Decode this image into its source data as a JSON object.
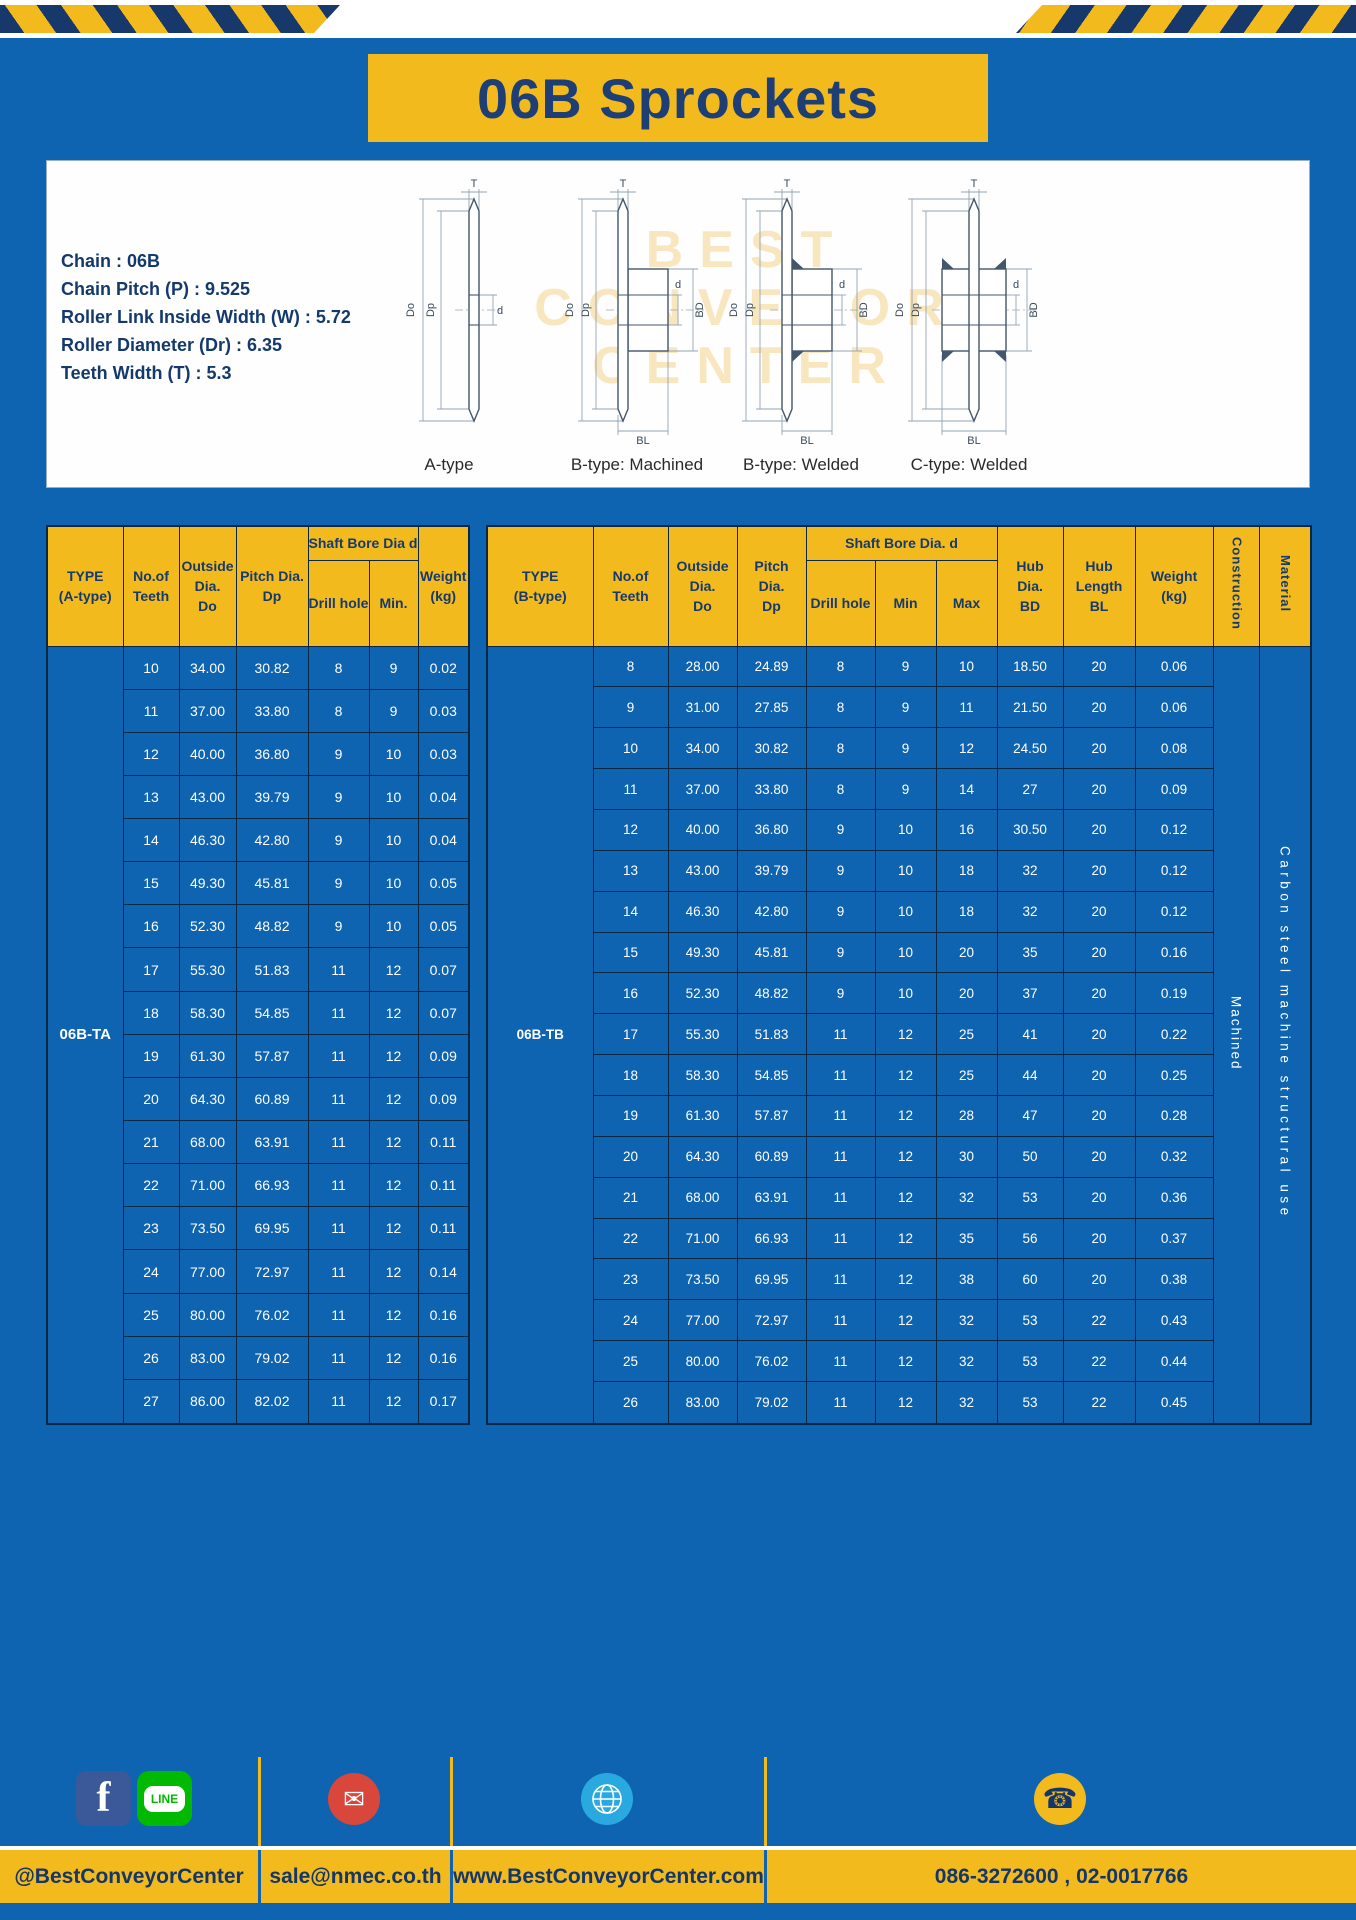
{
  "title": "06B Sprockets",
  "specs": {
    "lines": [
      "Chain : 06B",
      "Chain Pitch (P) : 9.525",
      "Roller Link Inside Width (W) : 5.72",
      "Roller Diameter (Dr) : 6.35",
      "Teeth Width (T) : 5.3"
    ]
  },
  "drawings": {
    "captions": [
      "A-type",
      "B-type: Machined",
      "B-type: Welded",
      "C-type: Welded"
    ],
    "labels": {
      "T": "T",
      "Do": "Do",
      "Dp": "Dp",
      "d": "d",
      "BD": "BD",
      "BL": "BL"
    },
    "watermark": [
      "BEST",
      "CONVEYOR",
      "CENTER"
    ]
  },
  "table_a": {
    "header": {
      "type": "TYPE\n(A-type)",
      "teeth": "No.of\nTeeth",
      "outside": "Outside\nDia.\nDo",
      "pitch": "Pitch Dia.\nDp",
      "shaft_bore": "Shaft Bore Dia d",
      "drill": "Drill hole",
      "min": "Min.",
      "weight": "Weight\n(kg)"
    },
    "type_value": "06B-TA",
    "rows": [
      [
        "10",
        "34.00",
        "30.82",
        "8",
        "9",
        "0.02"
      ],
      [
        "11",
        "37.00",
        "33.80",
        "8",
        "9",
        "0.03"
      ],
      [
        "12",
        "40.00",
        "36.80",
        "9",
        "10",
        "0.03"
      ],
      [
        "13",
        "43.00",
        "39.79",
        "9",
        "10",
        "0.04"
      ],
      [
        "14",
        "46.30",
        "42.80",
        "9",
        "10",
        "0.04"
      ],
      [
        "15",
        "49.30",
        "45.81",
        "9",
        "10",
        "0.05"
      ],
      [
        "16",
        "52.30",
        "48.82",
        "9",
        "10",
        "0.05"
      ],
      [
        "17",
        "55.30",
        "51.83",
        "11",
        "12",
        "0.07"
      ],
      [
        "18",
        "58.30",
        "54.85",
        "11",
        "12",
        "0.07"
      ],
      [
        "19",
        "61.30",
        "57.87",
        "11",
        "12",
        "0.09"
      ],
      [
        "20",
        "64.30",
        "60.89",
        "11",
        "12",
        "0.09"
      ],
      [
        "21",
        "68.00",
        "63.91",
        "11",
        "12",
        "0.11"
      ],
      [
        "22",
        "71.00",
        "66.93",
        "11",
        "12",
        "0.11"
      ],
      [
        "23",
        "73.50",
        "69.95",
        "11",
        "12",
        "0.11"
      ],
      [
        "24",
        "77.00",
        "72.97",
        "11",
        "12",
        "0.14"
      ],
      [
        "25",
        "80.00",
        "76.02",
        "11",
        "12",
        "0.16"
      ],
      [
        "26",
        "83.00",
        "79.02",
        "11",
        "12",
        "0.16"
      ],
      [
        "27",
        "86.00",
        "82.02",
        "11",
        "12",
        "0.17"
      ]
    ]
  },
  "table_b": {
    "header": {
      "type": "TYPE\n(B-type)",
      "teeth": "No.of\nTeeth",
      "outside": "Outside\nDia.\nDo",
      "pitch": "Pitch\nDia.\nDp",
      "shaft_bore": "Shaft Bore Dia. d",
      "drill": "Drill hole",
      "min": "Min",
      "max": "Max",
      "hub_dia": "Hub\nDia.\nBD",
      "hub_len": "Hub\nLength\nBL",
      "weight": "Weight\n(kg)",
      "construction": "Construction",
      "material": "Material"
    },
    "type_value": "06B-TB",
    "construction_value": "Machined",
    "material_value": "Carbon steel machine structural use",
    "rows": [
      [
        "8",
        "28.00",
        "24.89",
        "8",
        "9",
        "10",
        "18.50",
        "20",
        "0.06"
      ],
      [
        "9",
        "31.00",
        "27.85",
        "8",
        "9",
        "11",
        "21.50",
        "20",
        "0.06"
      ],
      [
        "10",
        "34.00",
        "30.82",
        "8",
        "9",
        "12",
        "24.50",
        "20",
        "0.08"
      ],
      [
        "11",
        "37.00",
        "33.80",
        "8",
        "9",
        "14",
        "27",
        "20",
        "0.09"
      ],
      [
        "12",
        "40.00",
        "36.80",
        "9",
        "10",
        "16",
        "30.50",
        "20",
        "0.12"
      ],
      [
        "13",
        "43.00",
        "39.79",
        "9",
        "10",
        "18",
        "32",
        "20",
        "0.12"
      ],
      [
        "14",
        "46.30",
        "42.80",
        "9",
        "10",
        "18",
        "32",
        "20",
        "0.12"
      ],
      [
        "15",
        "49.30",
        "45.81",
        "9",
        "10",
        "20",
        "35",
        "20",
        "0.16"
      ],
      [
        "16",
        "52.30",
        "48.82",
        "9",
        "10",
        "20",
        "37",
        "20",
        "0.19"
      ],
      [
        "17",
        "55.30",
        "51.83",
        "11",
        "12",
        "25",
        "41",
        "20",
        "0.22"
      ],
      [
        "18",
        "58.30",
        "54.85",
        "11",
        "12",
        "25",
        "44",
        "20",
        "0.25"
      ],
      [
        "19",
        "61.30",
        "57.87",
        "11",
        "12",
        "28",
        "47",
        "20",
        "0.28"
      ],
      [
        "20",
        "64.30",
        "60.89",
        "11",
        "12",
        "30",
        "50",
        "20",
        "0.32"
      ],
      [
        "21",
        "68.00",
        "63.91",
        "11",
        "12",
        "32",
        "53",
        "20",
        "0.36"
      ],
      [
        "22",
        "71.00",
        "66.93",
        "11",
        "12",
        "35",
        "56",
        "20",
        "0.37"
      ],
      [
        "23",
        "73.50",
        "69.95",
        "11",
        "12",
        "38",
        "60",
        "20",
        "0.38"
      ],
      [
        "24",
        "77.00",
        "72.97",
        "11",
        "12",
        "32",
        "53",
        "22",
        "0.43"
      ],
      [
        "25",
        "80.00",
        "76.02",
        "11",
        "12",
        "32",
        "53",
        "22",
        "0.44"
      ],
      [
        "26",
        "83.00",
        "79.02",
        "11",
        "12",
        "32",
        "53",
        "22",
        "0.45"
      ]
    ]
  },
  "footer": {
    "facebook_handle": "@BestConveyorCenter",
    "email": "sale@nmec.co.th",
    "website": "www.BestConveyorCenter.com",
    "phones": "086-3272600 , 02-0017766",
    "icons": {
      "facebook": "f",
      "line": "LINE",
      "mail": "✉",
      "phone": "☎"
    }
  }
}
